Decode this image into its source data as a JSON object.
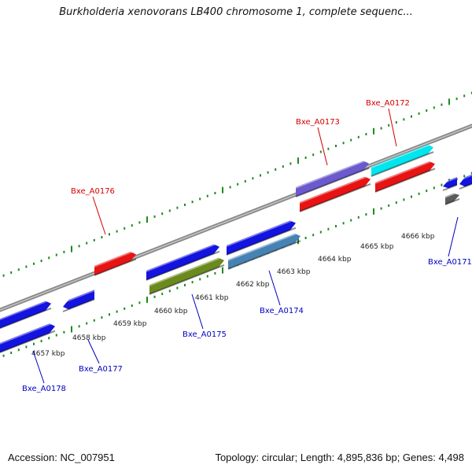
{
  "title": "Burkholderia xenovorans LB400 chromosome 1, complete sequenc...",
  "footer": {
    "accession": "Accession: NC_007951",
    "topology": "Topology: circular; Length: 4,895,836 bp; Genes: 4,498"
  },
  "colors": {
    "backbone": "#8a8a8a",
    "tick": "#1e8a1e",
    "label_top": "#d40000",
    "label_bottom": "#0000c0"
  },
  "scale_labels": [
    "4657 kbp",
    "4658 kbp",
    "4659 kbp",
    "4660 kbp",
    "4661 kbp",
    "4662 kbp",
    "4663 kbp",
    "4664 kbp",
    "4665 kbp",
    "4666 kbp"
  ],
  "genes": [
    {
      "name": "Bxe_A0178",
      "color": "#1414e0",
      "labeled": true
    },
    {
      "name": "Bxe_A0177",
      "color": "#1414e0",
      "labeled": true
    },
    {
      "name": "Bxe_A0176",
      "color": "#e81414",
      "labeled": true
    },
    {
      "name": "Bxe_A0175",
      "color": "#6b8a1e",
      "labeled": true
    },
    {
      "name": "Bxe_A0174",
      "color": "#4682b4",
      "labeled": true
    },
    {
      "name": "Bxe_A0173",
      "color": "#6a5acd",
      "labeled": true
    },
    {
      "name": "Bxe_A0172",
      "color": "#00e5ee",
      "labeled": true
    },
    {
      "name": "Bxe_A0171",
      "color": "#5a5a5a",
      "labeled": true
    },
    {
      "name": "unlabeled-blue-1",
      "color": "#1414e0",
      "labeled": false
    },
    {
      "name": "unlabeled-blue-2",
      "color": "#1414e0",
      "labeled": false
    },
    {
      "name": "unlabeled-blue-3",
      "color": "#1414e0",
      "labeled": false
    },
    {
      "name": "unlabeled-red-1",
      "color": "#e81414",
      "labeled": false
    },
    {
      "name": "unlabeled-red-2",
      "color": "#e81414",
      "labeled": false
    },
    {
      "name": "unlabeled-blue-4",
      "color": "#1414e0",
      "labeled": false
    },
    {
      "name": "unlabeled-blue-5",
      "color": "#1414e0",
      "labeled": false
    }
  ]
}
